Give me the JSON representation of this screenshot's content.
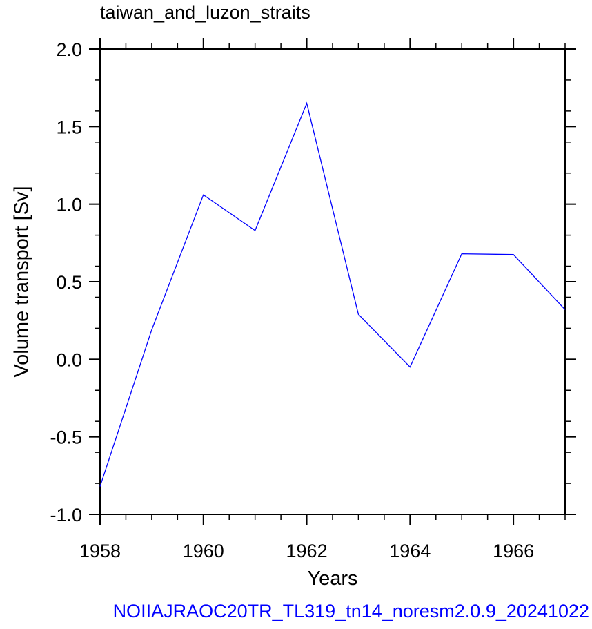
{
  "chart_data": {
    "type": "line",
    "title": "taiwan_and_luzon_straits",
    "xlabel": "Years",
    "ylabel": "Volume transport [Sv]",
    "footer": "NOIIAJRAOC20TR_TL319_tn14_noresm2.0.9_20241022",
    "xlim": [
      1958,
      1967
    ],
    "ylim": [
      -1.0,
      2.0
    ],
    "x_ticks": [
      "1958",
      "1960",
      "1962",
      "1964",
      "1966"
    ],
    "y_ticks": [
      "2.0",
      "1.5",
      "1.0",
      "0.5",
      "0.0",
      "-0.5",
      "-1.0"
    ],
    "grid": false,
    "line_color": "#0000ff",
    "series": [
      {
        "x": [
          1958,
          1959,
          1960,
          1961,
          1962,
          1963,
          1964,
          1965,
          1966,
          1967
        ],
        "values": [
          -0.82,
          0.19,
          1.06,
          0.83,
          1.65,
          0.29,
          -0.05,
          0.68,
          0.675,
          0.32
        ]
      }
    ]
  }
}
